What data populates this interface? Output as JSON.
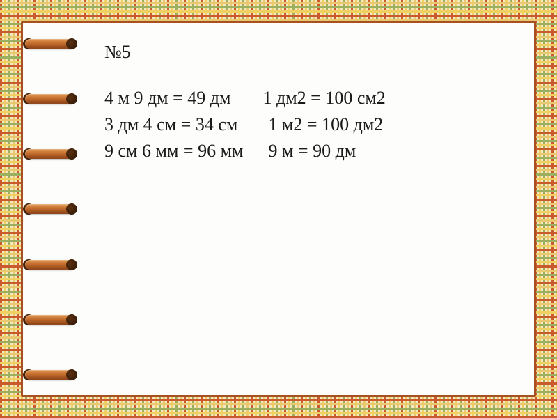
{
  "problem_number": "№5",
  "columns": {
    "left": [
      "4 м 9 дм = 49 дм",
      "3 дм 4 см = 34 см",
      "9 см 6 мм = 96 мм"
    ],
    "right": [
      "1 дм2 = 100 см2",
      "1 м2 = 100 дм2",
      "9 м = 90 дм"
    ]
  },
  "style": {
    "background_color": "#fdfdfb",
    "frame_border_color": "#a85020",
    "text_color": "#1a1a1a",
    "font_family": "Times New Roman",
    "font_size_pt": 20,
    "ring_count": 7,
    "ring_gradient": [
      "#e09850",
      "#c87030",
      "#a85820",
      "#8a4018"
    ],
    "plaid_colors": [
      "#c85a2e",
      "#f0d060",
      "#9ab060",
      "#e8c870",
      "#f5e8c0"
    ]
  }
}
